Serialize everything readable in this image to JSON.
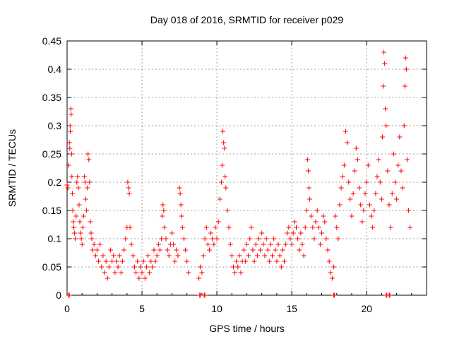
{
  "chart_data": {
    "type": "scatter",
    "title": "Day 018 of 2016, SRMTID for receiver p029",
    "xlabel": "GPS time / hours",
    "ylabel": "SRMTID / TECUs",
    "xlim": [
      0,
      24
    ],
    "ylim": [
      0,
      0.45
    ],
    "x_ticks": [
      0,
      5,
      10,
      15,
      20
    ],
    "y_ticks": [
      0,
      0.05,
      0.1,
      0.15,
      0.2,
      0.25,
      0.3,
      0.35,
      0.4,
      0.45
    ],
    "x_tick_labels": [
      "0",
      "5",
      "10",
      "15",
      "20"
    ],
    "y_tick_labels": [
      "0",
      "0.05",
      "0.1",
      "0.15",
      "0.2",
      "0.25",
      "0.3",
      "0.35",
      "0.4",
      "0.45"
    ],
    "grid": true,
    "marker": "+",
    "color": "#ff0000",
    "series": [
      {
        "name": "p029",
        "points": [
          [
            0.0,
            0.195
          ],
          [
            0.05,
            0.19
          ],
          [
            0.1,
            0.23
          ],
          [
            0.15,
            0.27
          ],
          [
            0.18,
            0.26
          ],
          [
            0.2,
            0.3
          ],
          [
            0.22,
            0.29
          ],
          [
            0.25,
            0.33
          ],
          [
            0.27,
            0.32
          ],
          [
            0.3,
            0.25
          ],
          [
            0.32,
            0.21
          ],
          [
            0.35,
            0.18
          ],
          [
            0.38,
            0.15
          ],
          [
            0.4,
            0.13
          ],
          [
            0.45,
            0.12
          ],
          [
            0.5,
            0.11
          ],
          [
            0.55,
            0.1
          ],
          [
            0.6,
            0.14
          ],
          [
            0.65,
            0.2
          ],
          [
            0.7,
            0.21
          ],
          [
            0.75,
            0.19
          ],
          [
            0.8,
            0.16
          ],
          [
            0.85,
            0.13
          ],
          [
            0.9,
            0.11
          ],
          [
            0.95,
            0.1
          ],
          [
            1.0,
            0.09
          ],
          [
            1.05,
            0.12
          ],
          [
            1.1,
            0.14
          ],
          [
            1.15,
            0.21
          ],
          [
            1.2,
            0.2
          ],
          [
            1.25,
            0.17
          ],
          [
            1.3,
            0.15
          ],
          [
            1.35,
            0.19
          ],
          [
            1.4,
            0.25
          ],
          [
            1.45,
            0.24
          ],
          [
            1.5,
            0.2
          ],
          [
            1.55,
            0.13
          ],
          [
            1.6,
            0.11
          ],
          [
            1.65,
            0.1
          ],
          [
            1.7,
            0.08
          ],
          [
            1.8,
            0.09
          ],
          [
            1.9,
            0.07
          ],
          [
            2.0,
            0.08
          ],
          [
            2.1,
            0.06
          ],
          [
            2.2,
            0.09
          ],
          [
            2.3,
            0.05
          ],
          [
            2.4,
            0.07
          ],
          [
            2.5,
            0.04
          ],
          [
            2.6,
            0.06
          ],
          [
            2.7,
            0.03
          ],
          [
            2.8,
            0.05
          ],
          [
            2.9,
            0.08
          ],
          [
            3.0,
            0.06
          ],
          [
            3.1,
            0.07
          ],
          [
            3.2,
            0.04
          ],
          [
            3.3,
            0.06
          ],
          [
            3.4,
            0.05
          ],
          [
            3.5,
            0.07
          ],
          [
            3.6,
            0.04
          ],
          [
            3.7,
            0.06
          ],
          [
            3.8,
            0.08
          ],
          [
            3.9,
            0.1
          ],
          [
            4.0,
            0.12
          ],
          [
            4.05,
            0.2
          ],
          [
            4.1,
            0.19
          ],
          [
            4.15,
            0.18
          ],
          [
            4.2,
            0.12
          ],
          [
            4.3,
            0.09
          ],
          [
            4.4,
            0.07
          ],
          [
            4.5,
            0.05
          ],
          [
            4.6,
            0.04
          ],
          [
            4.7,
            0.06
          ],
          [
            4.8,
            0.03
          ],
          [
            4.9,
            0.05
          ],
          [
            5.0,
            0.04
          ],
          [
            5.1,
            0.06
          ],
          [
            5.2,
            0.03
          ],
          [
            5.3,
            0.05
          ],
          [
            5.4,
            0.07
          ],
          [
            5.5,
            0.04
          ],
          [
            5.6,
            0.06
          ],
          [
            5.7,
            0.05
          ],
          [
            5.8,
            0.08
          ],
          [
            5.9,
            0.06
          ],
          [
            6.0,
            0.07
          ],
          [
            6.1,
            0.09
          ],
          [
            6.2,
            0.08
          ],
          [
            6.3,
            0.1
          ],
          [
            6.35,
            0.14
          ],
          [
            6.4,
            0.16
          ],
          [
            6.45,
            0.15
          ],
          [
            6.5,
            0.12
          ],
          [
            6.6,
            0.1
          ],
          [
            6.7,
            0.08
          ],
          [
            6.8,
            0.07
          ],
          [
            6.9,
            0.09
          ],
          [
            7.0,
            0.11
          ],
          [
            7.1,
            0.09
          ],
          [
            7.2,
            0.06
          ],
          [
            7.3,
            0.08
          ],
          [
            7.4,
            0.07
          ],
          [
            7.5,
            0.19
          ],
          [
            7.55,
            0.18
          ],
          [
            7.6,
            0.16
          ],
          [
            7.65,
            0.14
          ],
          [
            7.7,
            0.12
          ],
          [
            7.8,
            0.1
          ],
          [
            7.9,
            0.08
          ],
          [
            8.0,
            0.06
          ],
          [
            8.1,
            0.04
          ],
          [
            8.8,
            0.03
          ],
          [
            8.9,
            0.05
          ],
          [
            9.0,
            0.04
          ],
          [
            9.1,
            0.07
          ],
          [
            9.2,
            0.1
          ],
          [
            9.3,
            0.12
          ],
          [
            9.4,
            0.09
          ],
          [
            9.5,
            0.08
          ],
          [
            9.6,
            0.11
          ],
          [
            9.7,
            0.1
          ],
          [
            9.8,
            0.09
          ],
          [
            9.9,
            0.12
          ],
          [
            10.0,
            0.1
          ],
          [
            10.1,
            0.13
          ],
          [
            10.2,
            0.17
          ],
          [
            10.3,
            0.2
          ],
          [
            10.35,
            0.23
          ],
          [
            10.4,
            0.29
          ],
          [
            10.45,
            0.27
          ],
          [
            10.5,
            0.26
          ],
          [
            10.55,
            0.21
          ],
          [
            10.6,
            0.19
          ],
          [
            10.7,
            0.15
          ],
          [
            10.8,
            0.12
          ],
          [
            10.9,
            0.09
          ],
          [
            11.0,
            0.07
          ],
          [
            11.1,
            0.05
          ],
          [
            11.2,
            0.04
          ],
          [
            11.3,
            0.06
          ],
          [
            11.4,
            0.05
          ],
          [
            11.5,
            0.07
          ],
          [
            11.6,
            0.04
          ],
          [
            11.7,
            0.06
          ],
          [
            11.8,
            0.08
          ],
          [
            11.9,
            0.06
          ],
          [
            12.0,
            0.09
          ],
          [
            12.1,
            0.07
          ],
          [
            12.2,
            0.1
          ],
          [
            12.3,
            0.12
          ],
          [
            12.4,
            0.08
          ],
          [
            12.5,
            0.06
          ],
          [
            12.6,
            0.09
          ],
          [
            12.7,
            0.07
          ],
          [
            12.8,
            0.1
          ],
          [
            12.9,
            0.08
          ],
          [
            13.0,
            0.11
          ],
          [
            13.1,
            0.09
          ],
          [
            13.2,
            0.07
          ],
          [
            13.3,
            0.1
          ],
          [
            13.4,
            0.08
          ],
          [
            13.5,
            0.06
          ],
          [
            13.6,
            0.09
          ],
          [
            13.7,
            0.07
          ],
          [
            13.8,
            0.1
          ],
          [
            13.9,
            0.08
          ],
          [
            14.0,
            0.06
          ],
          [
            14.1,
            0.09
          ],
          [
            14.2,
            0.07
          ],
          [
            14.3,
            0.05
          ],
          [
            14.4,
            0.08
          ],
          [
            14.5,
            0.06
          ],
          [
            14.6,
            0.09
          ],
          [
            14.7,
            0.11
          ],
          [
            14.8,
            0.12
          ],
          [
            14.9,
            0.1
          ],
          [
            15.0,
            0.09
          ],
          [
            15.1,
            0.11
          ],
          [
            15.2,
            0.13
          ],
          [
            15.3,
            0.12
          ],
          [
            15.4,
            0.1
          ],
          [
            15.5,
            0.08
          ],
          [
            15.6,
            0.11
          ],
          [
            15.7,
            0.09
          ],
          [
            15.8,
            0.07
          ],
          [
            15.9,
            0.12
          ],
          [
            16.0,
            0.15
          ],
          [
            16.05,
            0.24
          ],
          [
            16.1,
            0.22
          ],
          [
            16.15,
            0.19
          ],
          [
            16.2,
            0.17
          ],
          [
            16.3,
            0.14
          ],
          [
            16.4,
            0.12
          ],
          [
            16.5,
            0.1
          ],
          [
            16.6,
            0.13
          ],
          [
            16.7,
            0.15
          ],
          [
            16.8,
            0.12
          ],
          [
            16.9,
            0.09
          ],
          [
            17.0,
            0.11
          ],
          [
            17.1,
            0.14
          ],
          [
            17.2,
            0.13
          ],
          [
            17.3,
            0.1
          ],
          [
            17.4,
            0.08
          ],
          [
            17.5,
            0.06
          ],
          [
            17.6,
            0.04
          ],
          [
            17.7,
            0.03
          ],
          [
            17.8,
            0.05
          ],
          [
            17.9,
            0.14
          ],
          [
            18.0,
            0.12
          ],
          [
            18.1,
            0.1
          ],
          [
            18.2,
            0.16
          ],
          [
            18.3,
            0.19
          ],
          [
            18.4,
            0.21
          ],
          [
            18.5,
            0.23
          ],
          [
            18.6,
            0.29
          ],
          [
            18.7,
            0.27
          ],
          [
            18.8,
            0.2
          ],
          [
            18.9,
            0.17
          ],
          [
            19.0,
            0.14
          ],
          [
            19.1,
            0.18
          ],
          [
            19.2,
            0.22
          ],
          [
            19.3,
            0.26
          ],
          [
            19.4,
            0.24
          ],
          [
            19.5,
            0.19
          ],
          [
            19.6,
            0.16
          ],
          [
            19.7,
            0.13
          ],
          [
            19.8,
            0.15
          ],
          [
            19.9,
            0.18
          ],
          [
            20.0,
            0.2
          ],
          [
            20.1,
            0.23
          ],
          [
            20.2,
            0.16
          ],
          [
            20.3,
            0.14
          ],
          [
            20.4,
            0.12
          ],
          [
            20.5,
            0.15
          ],
          [
            20.6,
            0.18
          ],
          [
            20.7,
            0.21
          ],
          [
            20.8,
            0.24
          ],
          [
            20.9,
            0.2
          ],
          [
            21.0,
            0.17
          ],
          [
            21.05,
            0.28
          ],
          [
            21.1,
            0.37
          ],
          [
            21.15,
            0.43
          ],
          [
            21.2,
            0.41
          ],
          [
            21.25,
            0.33
          ],
          [
            21.3,
            0.3
          ],
          [
            21.4,
            0.22
          ],
          [
            21.5,
            0.16
          ],
          [
            21.6,
            0.12
          ],
          [
            21.7,
            0.18
          ],
          [
            21.8,
            0.25
          ],
          [
            21.9,
            0.2
          ],
          [
            22.0,
            0.17
          ],
          [
            22.1,
            0.23
          ],
          [
            22.2,
            0.28
          ],
          [
            22.3,
            0.22
          ],
          [
            22.4,
            0.19
          ],
          [
            22.5,
            0.3
          ],
          [
            22.55,
            0.37
          ],
          [
            22.6,
            0.42
          ],
          [
            22.65,
            0.4
          ],
          [
            22.7,
            0.24
          ],
          [
            22.8,
            0.15
          ],
          [
            22.9,
            0.12
          ],
          [
            0.1,
            0.0
          ],
          [
            0.15,
            0.0
          ],
          [
            8.85,
            0.0
          ],
          [
            8.9,
            0.0
          ],
          [
            9.15,
            0.0
          ],
          [
            9.2,
            0.0
          ],
          [
            17.8,
            0.0
          ],
          [
            17.85,
            0.0
          ],
          [
            21.3,
            0.0
          ],
          [
            21.35,
            0.0
          ],
          [
            21.5,
            0.0
          ],
          [
            21.55,
            0.0
          ]
        ]
      }
    ]
  }
}
